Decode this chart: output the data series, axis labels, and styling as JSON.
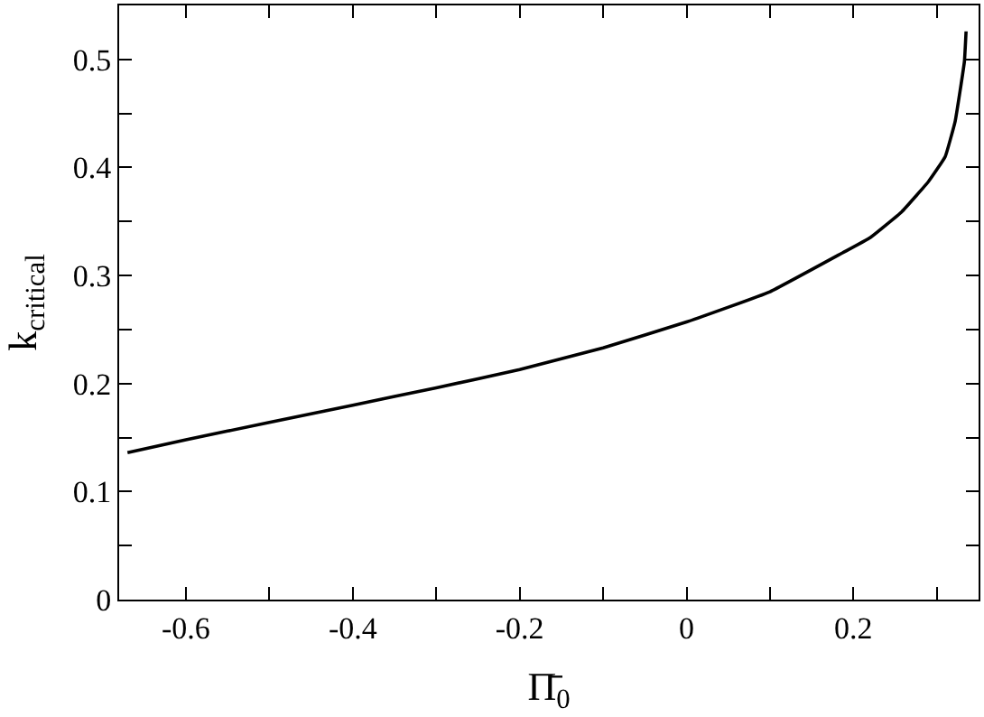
{
  "chart_data": {
    "type": "line",
    "xlabel": "Π̄$_{0}$",
    "ylabel": "k$_{critical}$",
    "x": [
      -0.67,
      -0.6,
      -0.5,
      -0.4,
      -0.3,
      -0.2,
      -0.1,
      0,
      0.1,
      0.187,
      0.22,
      0.258,
      0.29,
      0.31,
      0.322,
      0.333,
      0.335
    ],
    "series": [
      {
        "color": "#000000",
        "values": [
          0.136,
          0.148,
          0.164,
          0.18,
          0.196,
          0.213,
          0.233,
          0.257,
          0.285,
          0.321,
          0.335,
          0.359,
          0.387,
          0.41,
          0.443,
          0.498,
          0.526
        ]
      }
    ],
    "xlim": [
      -0.68,
      0.35
    ],
    "xticks": [
      -0.6,
      {
        "value": -0.5,
        "label": null
      },
      -0.4,
      {
        "value": -0.3,
        "label": null
      },
      -0.2,
      {
        "value": -0.1,
        "label": null
      },
      0,
      {
        "value": 0.1,
        "label": null
      },
      0.2,
      {
        "value": 0.3,
        "label": null
      }
    ],
    "ylim": [
      0,
      0.55
    ],
    "yticks": [
      0,
      {
        "value": 0.05,
        "label": null
      },
      0.1,
      {
        "value": 0.15,
        "label": null
      },
      0.2,
      {
        "value": 0.25,
        "label": null
      },
      0.3,
      {
        "value": 0.35,
        "label": null
      },
      0.4,
      {
        "value": 0.45,
        "label": null
      },
      0.5
    ],
    "legend": false,
    "marker": "none",
    "line_style": "solid"
  }
}
